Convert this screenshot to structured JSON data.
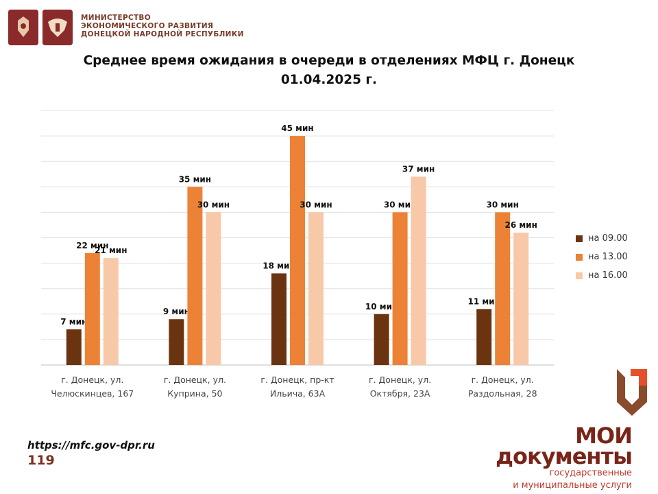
{
  "header": {
    "ministry_lines": [
      "МИНИСТЕРСТВО",
      "ЭКОНОМИЧЕСКОГО РАЗВИТИЯ",
      "ДОНЕЦКОЙ НАРОДНОЙ РЕСПУБЛИКИ"
    ],
    "emblems": [
      "coat-of-arms-russia",
      "coat-of-arms-dpr"
    ]
  },
  "title_lines": [
    "Среднее время ожидания в очереди в отделениях МФЦ г. Донецк",
    "01.04.2025 г."
  ],
  "chart_data": {
    "type": "bar",
    "categories": [
      [
        "г. Донецк, ул.",
        "Челюскинцев, 167"
      ],
      [
        "г. Донецк, ул.",
        "Куприна, 50"
      ],
      [
        "г. Донецк, пр-кт",
        "Ильича, 63А"
      ],
      [
        "г. Донецк, ул.",
        "Октября, 23А"
      ],
      [
        "г. Донецк, ул.",
        "Раздольная, 28"
      ]
    ],
    "series": [
      {
        "name": "на 09.00",
        "color": "#6b3410",
        "values": [
          7,
          9,
          18,
          10,
          11
        ],
        "labels": [
          "7 мин",
          "9 мин",
          "18 мин",
          "10 мин",
          "11 мин"
        ]
      },
      {
        "name": "на 13.00",
        "color": "#ec8236",
        "values": [
          22,
          35,
          45,
          30,
          30
        ],
        "labels": [
          "22 мин",
          "35 мин",
          "45 мин",
          "30 мин",
          "30 мин"
        ]
      },
      {
        "name": "на 16.00",
        "color": "#f7c9a8",
        "values": [
          21,
          30,
          30,
          37,
          26
        ],
        "labels": [
          "21 мин",
          "30 мин",
          "30 мин",
          "37 мин",
          "26 мин"
        ]
      }
    ],
    "ylim": [
      0,
      50
    ],
    "grid": true,
    "legend_position": "right"
  },
  "footer": {
    "url": "https://mfc.gov-dpr.ru",
    "page_number": "119"
  },
  "brand": {
    "main_lines": [
      "МОИ",
      "документы"
    ],
    "sub_lines": [
      "государственные",
      "и муниципальные услуги"
    ],
    "colors": {
      "dark": "#7a2418",
      "accent": "#c0392b"
    }
  }
}
